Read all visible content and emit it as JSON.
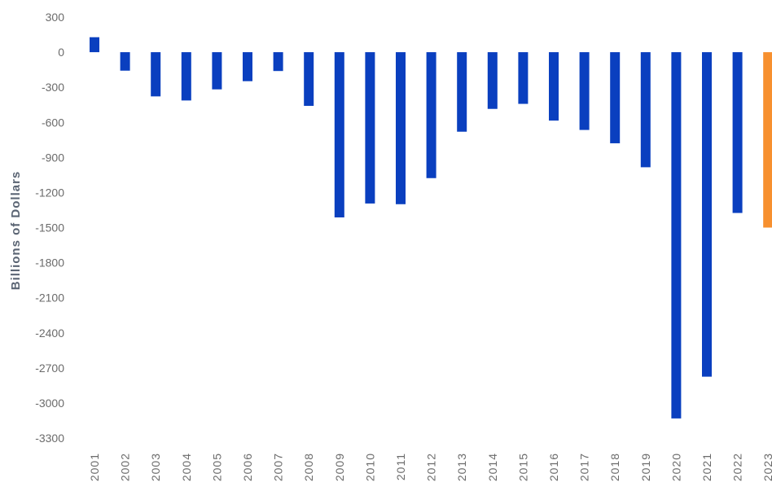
{
  "chart_data": {
    "type": "bar",
    "title": "",
    "xlabel": "",
    "ylabel": "Billions of Dollars",
    "ylim": [
      -3300,
      300
    ],
    "yticks": [
      300,
      0,
      -300,
      -600,
      -900,
      -1200,
      -1500,
      -1800,
      -2100,
      -2400,
      -2700,
      -3000,
      -3300
    ],
    "categories": [
      "2001",
      "2002",
      "2003",
      "2004",
      "2005",
      "2006",
      "2007",
      "2008",
      "2009",
      "2010",
      "2011",
      "2012",
      "2013",
      "2014",
      "2015",
      "2016",
      "2017",
      "2018",
      "2019",
      "2020",
      "2021",
      "2022",
      "2023"
    ],
    "values": [
      128,
      -158,
      -378,
      -413,
      -318,
      -248,
      -161,
      -459,
      -1413,
      -1294,
      -1300,
      -1077,
      -680,
      -485,
      -442,
      -585,
      -665,
      -779,
      -984,
      -3132,
      -2775,
      -1375,
      -1500
    ],
    "bar_colors": [
      "#0a3fbf",
      "#0a3fbf",
      "#0a3fbf",
      "#0a3fbf",
      "#0a3fbf",
      "#0a3fbf",
      "#0a3fbf",
      "#0a3fbf",
      "#0a3fbf",
      "#0a3fbf",
      "#0a3fbf",
      "#0a3fbf",
      "#0a3fbf",
      "#0a3fbf",
      "#0a3fbf",
      "#0a3fbf",
      "#0a3fbf",
      "#0a3fbf",
      "#0a3fbf",
      "#0a3fbf",
      "#0a3fbf",
      "#0a3fbf",
      "#f7902f"
    ],
    "grid": false,
    "legend": "none"
  }
}
